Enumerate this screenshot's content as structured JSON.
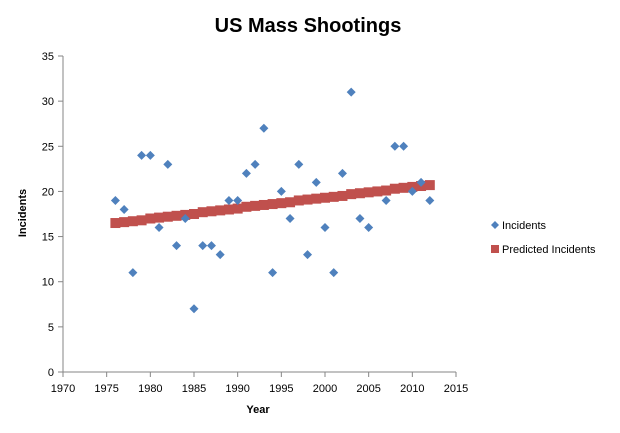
{
  "chart_data": {
    "type": "scatter",
    "title": "US Mass Shootings",
    "xlabel": "Year",
    "ylabel": "Incidents",
    "xlim": [
      1970,
      2015
    ],
    "ylim": [
      0,
      35
    ],
    "x_ticks": [
      1970,
      1975,
      1980,
      1985,
      1990,
      1995,
      2000,
      2005,
      2010,
      2015
    ],
    "y_ticks": [
      0,
      5,
      10,
      15,
      20,
      25,
      30,
      35
    ],
    "grid": false,
    "legend_position": "right",
    "series": [
      {
        "name": "Incidents",
        "color": "#4f81bd",
        "marker": "diamond",
        "points": [
          [
            1976,
            19
          ],
          [
            1977,
            18
          ],
          [
            1978,
            11
          ],
          [
            1979,
            24
          ],
          [
            1980,
            24
          ],
          [
            1981,
            16
          ],
          [
            1982,
            23
          ],
          [
            1983,
            14
          ],
          [
            1984,
            17
          ],
          [
            1985,
            7
          ],
          [
            1986,
            14
          ],
          [
            1987,
            14
          ],
          [
            1988,
            13
          ],
          [
            1989,
            19
          ],
          [
            1990,
            19
          ],
          [
            1991,
            22
          ],
          [
            1992,
            23
          ],
          [
            1993,
            27
          ],
          [
            1994,
            11
          ],
          [
            1995,
            20
          ],
          [
            1996,
            17
          ],
          [
            1997,
            23
          ],
          [
            1998,
            13
          ],
          [
            1999,
            21
          ],
          [
            2000,
            16
          ],
          [
            2001,
            11
          ],
          [
            2002,
            22
          ],
          [
            2003,
            31
          ],
          [
            2004,
            17
          ],
          [
            2005,
            16
          ],
          [
            2007,
            19
          ],
          [
            2008,
            25
          ],
          [
            2009,
            25
          ],
          [
            2010,
            20
          ],
          [
            2011,
            21
          ],
          [
            2012,
            19
          ]
        ]
      },
      {
        "name": "Predicted Incidents",
        "color": "#c0504d",
        "marker": "square",
        "points": [
          [
            1976,
            16.5
          ],
          [
            1977,
            16.6
          ],
          [
            1978,
            16.7
          ],
          [
            1979,
            16.8
          ],
          [
            1980,
            17.0
          ],
          [
            1981,
            17.1
          ],
          [
            1982,
            17.2
          ],
          [
            1983,
            17.3
          ],
          [
            1984,
            17.4
          ],
          [
            1985,
            17.5
          ],
          [
            1986,
            17.7
          ],
          [
            1987,
            17.8
          ],
          [
            1988,
            17.9
          ],
          [
            1989,
            18.0
          ],
          [
            1990,
            18.1
          ],
          [
            1991,
            18.3
          ],
          [
            1992,
            18.4
          ],
          [
            1993,
            18.5
          ],
          [
            1994,
            18.6
          ],
          [
            1995,
            18.7
          ],
          [
            1996,
            18.8
          ],
          [
            1997,
            19.0
          ],
          [
            1998,
            19.1
          ],
          [
            1999,
            19.2
          ],
          [
            2000,
            19.3
          ],
          [
            2001,
            19.4
          ],
          [
            2002,
            19.5
          ],
          [
            2003,
            19.7
          ],
          [
            2004,
            19.8
          ],
          [
            2005,
            19.9
          ],
          [
            2006,
            20.0
          ],
          [
            2007,
            20.1
          ],
          [
            2008,
            20.3
          ],
          [
            2009,
            20.4
          ],
          [
            2010,
            20.5
          ],
          [
            2011,
            20.6
          ],
          [
            2012,
            20.7
          ]
        ]
      }
    ]
  }
}
